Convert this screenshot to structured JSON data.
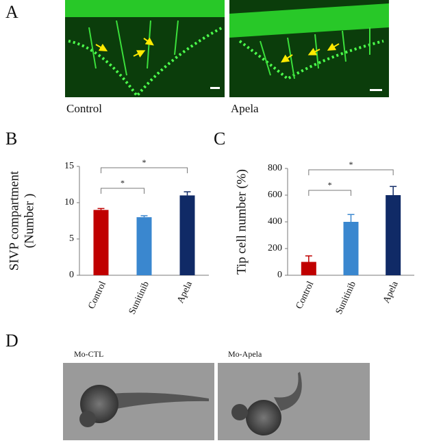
{
  "panel_labels": [
    "A",
    "B",
    "C",
    "D"
  ],
  "panel_a": {
    "captions": [
      "Control",
      "Apela"
    ]
  },
  "panel_d": {
    "captions": [
      "Mo-CTL",
      "Mo-Apela"
    ]
  },
  "chart_data": [
    {
      "type": "bar",
      "ylabel": [
        "SIVP compartment",
        "(Number )"
      ],
      "categories": [
        "Control",
        "Sunitinib",
        "Apela"
      ],
      "values": [
        9,
        8,
        11
      ],
      "errors": [
        0.2,
        0.2,
        0.5
      ],
      "colors": [
        "#c00000",
        "#3a87cf",
        "#102a66"
      ],
      "ylim": [
        0,
        15
      ],
      "yticks": [
        0,
        5,
        10,
        15
      ],
      "annotations": [
        "*",
        "*"
      ]
    },
    {
      "type": "bar",
      "ylabel": [
        "Tip cell number (%)"
      ],
      "categories": [
        "Control",
        "Sunitinib",
        "Apela"
      ],
      "values": [
        100,
        400,
        600
      ],
      "errors": [
        45,
        55,
        65
      ],
      "colors": [
        "#c00000",
        "#3a87cf",
        "#102a66"
      ],
      "ylim": [
        0,
        800
      ],
      "yticks": [
        0,
        200,
        400,
        600,
        800
      ],
      "annotations": [
        "*",
        "*"
      ]
    }
  ]
}
